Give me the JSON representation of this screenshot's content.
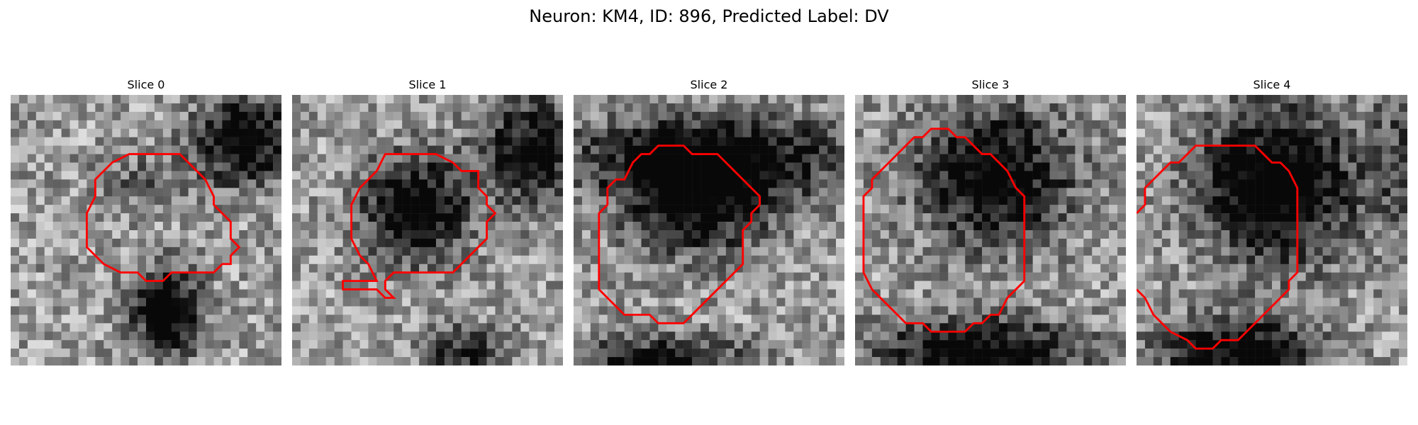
{
  "figure": {
    "title": "Neuron: KM4, ID: 896, Predicted Label: DV"
  },
  "panels": [
    {
      "title": "Slice 0"
    },
    {
      "title": "Slice 1"
    },
    {
      "title": "Slice 2"
    },
    {
      "title": "Slice 3"
    },
    {
      "title": "Slice 4"
    }
  ],
  "colors": {
    "contour": "#ff0000",
    "background": "#ffffff"
  }
}
